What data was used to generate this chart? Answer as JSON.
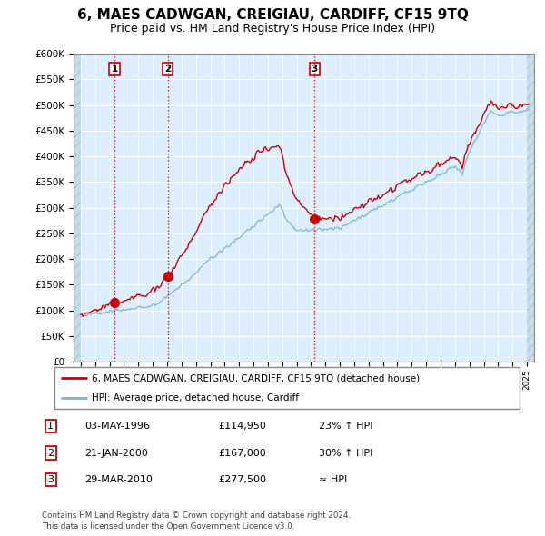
{
  "title": "6, MAES CADWGAN, CREIGIAU, CARDIFF, CF15 9TQ",
  "subtitle": "Price paid vs. HM Land Registry's House Price Index (HPI)",
  "title_fontsize": 11,
  "subtitle_fontsize": 9,
  "ylabel_ticks": [
    "£0",
    "£50K",
    "£100K",
    "£150K",
    "£200K",
    "£250K",
    "£300K",
    "£350K",
    "£400K",
    "£450K",
    "£500K",
    "£550K",
    "£600K"
  ],
  "ytick_values": [
    0,
    50000,
    100000,
    150000,
    200000,
    250000,
    300000,
    350000,
    400000,
    450000,
    500000,
    550000,
    600000
  ],
  "ylim": [
    0,
    600000
  ],
  "hpi_color": "#7ab4d8",
  "price_color": "#cc0000",
  "sale_marker_color": "#cc0000",
  "dashed_line_color": "#cc0000",
  "background_color": "#ffffff",
  "plot_bg_color": "#ddeeff",
  "grid_color": "#ffffff",
  "sales": [
    {
      "date": 1996.35,
      "price": 114950,
      "label": "1"
    },
    {
      "date": 2000.05,
      "price": 167000,
      "label": "2"
    },
    {
      "date": 2010.24,
      "price": 277500,
      "label": "3"
    }
  ],
  "legend_items": [
    {
      "label": "6, MAES CADWGAN, CREIGIAU, CARDIFF, CF15 9TQ (detached house)",
      "color": "#cc0000",
      "lw": 2
    },
    {
      "label": "HPI: Average price, detached house, Cardiff",
      "color": "#7ab4d8",
      "lw": 2
    }
  ],
  "table_data": [
    {
      "num": "1",
      "date": "03-MAY-1996",
      "price": "£114,950",
      "change": "23% ↑ HPI"
    },
    {
      "num": "2",
      "date": "21-JAN-2000",
      "price": "£167,000",
      "change": "30% ↑ HPI"
    },
    {
      "num": "3",
      "date": "29-MAR-2010",
      "price": "£277,500",
      "change": "≈ HPI"
    }
  ],
  "footer": "Contains HM Land Registry data © Crown copyright and database right 2024.\nThis data is licensed under the Open Government Licence v3.0.",
  "xmin": 1993.5,
  "xmax": 2025.5,
  "data_start": 1994.0,
  "data_end": 2025.0
}
